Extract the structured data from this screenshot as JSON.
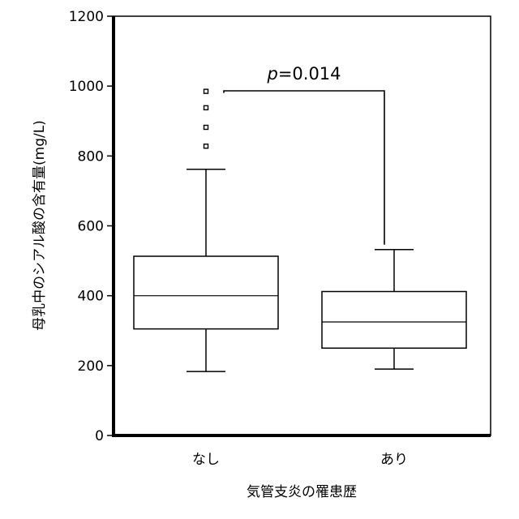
{
  "chart_data": {
    "type": "box",
    "title": "",
    "xlabel": "気管支炎の罹患歴",
    "ylabel": "母乳中のシアル酸の含有量(mg/L)",
    "ylim": [
      0,
      1200
    ],
    "yticks": [
      0,
      200,
      400,
      600,
      800,
      1000,
      1200
    ],
    "grid": false,
    "categories": [
      "なし",
      "あり"
    ],
    "boxes": [
      {
        "category": "なし",
        "whisker_low": 183,
        "q1": 305,
        "median": 400,
        "q3": 513,
        "whisker_high": 762,
        "outliers": [
          828,
          882,
          938,
          985
        ]
      },
      {
        "category": "あり",
        "whisker_low": 190,
        "q1": 250,
        "median": 325,
        "q3": 412,
        "whisker_high": 532,
        "outliers": []
      }
    ],
    "annotation": {
      "p_symbol": "p",
      "text": "=0.014",
      "bracket_between": [
        "なし",
        "あり"
      ]
    }
  }
}
